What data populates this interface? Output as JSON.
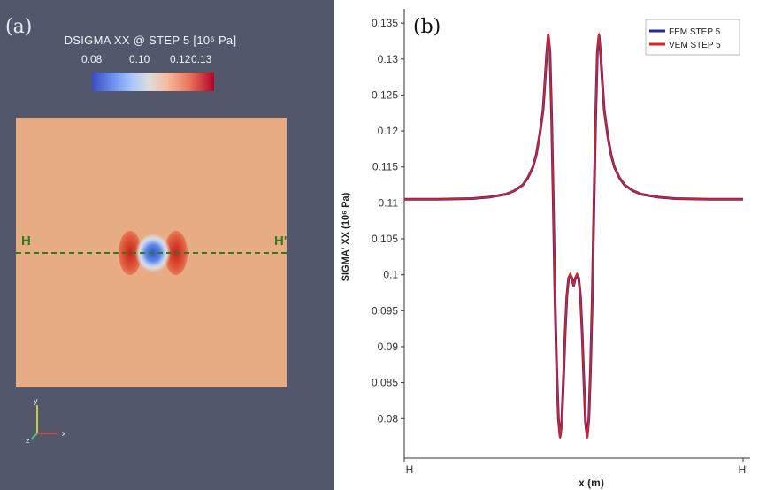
{
  "panel_a": {
    "label": "(a)",
    "colorbar": {
      "title": "DSIGMA XX @ STEP 5 [10⁶ Pa]",
      "ticks": [
        "0.08",
        "0.10",
        "0.12",
        "0.13"
      ],
      "colormap": "cool-to-warm",
      "color_low": "#3b4cc0",
      "color_mid": "#dddcdc",
      "color_high": "#b40426"
    },
    "domain_color": "#e8ac84",
    "background_color": "#52576b",
    "section_line_color": "#2f7d1c",
    "section_start": "H",
    "section_end": "H'",
    "axes_triad": {
      "x": "x",
      "y": "y",
      "z": "z"
    }
  },
  "panel_b": {
    "label": "(b)"
  },
  "chart_data": {
    "type": "line",
    "title": "",
    "xlabel": "x (m)",
    "ylabel": "SIGMA' XX (10⁶ Pa)",
    "x_tick_labels": [
      "H",
      "H'"
    ],
    "y_ticks": [
      0.08,
      0.085,
      0.09,
      0.095,
      0.1,
      0.105,
      0.11,
      0.115,
      0.12,
      0.125,
      0.13,
      0.135
    ],
    "y_tick_labels": [
      "0.08",
      "0.085",
      "0.09",
      "0.095",
      "0.1",
      "0.105",
      "0.11",
      "0.115",
      "0.12",
      "0.125",
      "0.13",
      "0.135"
    ],
    "ylim": [
      0.0745,
      0.136
    ],
    "xlim": [
      -1,
      1
    ],
    "grid": false,
    "legend_position": "top-right",
    "series": [
      {
        "name": "FEM STEP 5",
        "color": "#1f2f9a",
        "x": [
          -1,
          -0.8,
          -0.6,
          -0.5,
          -0.4,
          -0.35,
          -0.3,
          -0.27,
          -0.24,
          -0.22,
          -0.2,
          -0.18,
          -0.17,
          -0.16,
          -0.15,
          -0.14,
          -0.13,
          -0.12,
          -0.11,
          -0.1,
          -0.09,
          -0.08,
          -0.07,
          -0.06,
          -0.05,
          -0.04,
          -0.03,
          -0.02,
          -0.01,
          0,
          0.01,
          0.02,
          0.03,
          0.04,
          0.05,
          0.06,
          0.07,
          0.08,
          0.09,
          0.1,
          0.11,
          0.12,
          0.13,
          0.14,
          0.15,
          0.16,
          0.17,
          0.18,
          0.2,
          0.22,
          0.24,
          0.27,
          0.3,
          0.35,
          0.4,
          0.5,
          0.6,
          0.8,
          1
        ],
        "y": [
          0.1105,
          0.1105,
          0.1106,
          0.1108,
          0.1112,
          0.1117,
          0.1125,
          0.1135,
          0.115,
          0.1168,
          0.1195,
          0.123,
          0.1265,
          0.1305,
          0.1333,
          0.131,
          0.122,
          0.11,
          0.097,
          0.087,
          0.08,
          0.0775,
          0.0795,
          0.0855,
          0.092,
          0.097,
          0.0995,
          0.1,
          0.0995,
          0.0985,
          0.0995,
          0.1,
          0.0995,
          0.097,
          0.092,
          0.0855,
          0.0795,
          0.0775,
          0.08,
          0.087,
          0.097,
          0.11,
          0.122,
          0.131,
          0.1333,
          0.1305,
          0.1265,
          0.123,
          0.1195,
          0.1168,
          0.115,
          0.1135,
          0.1125,
          0.1117,
          0.1112,
          0.1108,
          0.1106,
          0.1105,
          0.1105
        ]
      },
      {
        "name": "VEM STEP 5",
        "color": "#e02020",
        "x": [
          -1,
          -0.8,
          -0.6,
          -0.5,
          -0.4,
          -0.35,
          -0.3,
          -0.27,
          -0.24,
          -0.22,
          -0.2,
          -0.18,
          -0.17,
          -0.16,
          -0.15,
          -0.14,
          -0.13,
          -0.12,
          -0.11,
          -0.1,
          -0.09,
          -0.08,
          -0.07,
          -0.06,
          -0.05,
          -0.04,
          -0.03,
          -0.02,
          -0.01,
          0,
          0.01,
          0.02,
          0.03,
          0.04,
          0.05,
          0.06,
          0.07,
          0.08,
          0.09,
          0.1,
          0.11,
          0.12,
          0.13,
          0.14,
          0.15,
          0.16,
          0.17,
          0.18,
          0.2,
          0.22,
          0.24,
          0.27,
          0.3,
          0.35,
          0.4,
          0.5,
          0.6,
          0.8,
          1
        ],
        "y": [
          0.1105,
          0.1105,
          0.1106,
          0.1108,
          0.1112,
          0.1117,
          0.1125,
          0.1135,
          0.115,
          0.1168,
          0.1195,
          0.123,
          0.1265,
          0.1305,
          0.1335,
          0.131,
          0.122,
          0.11,
          0.097,
          0.087,
          0.08,
          0.0773,
          0.0795,
          0.0855,
          0.092,
          0.097,
          0.0995,
          0.1002,
          0.0995,
          0.0985,
          0.0995,
          0.1002,
          0.0995,
          0.097,
          0.092,
          0.0855,
          0.0795,
          0.0773,
          0.08,
          0.087,
          0.097,
          0.11,
          0.122,
          0.131,
          0.1335,
          0.1305,
          0.1265,
          0.123,
          0.1195,
          0.1168,
          0.115,
          0.1135,
          0.1125,
          0.1117,
          0.1112,
          0.1108,
          0.1106,
          0.1105,
          0.1105
        ]
      }
    ]
  }
}
